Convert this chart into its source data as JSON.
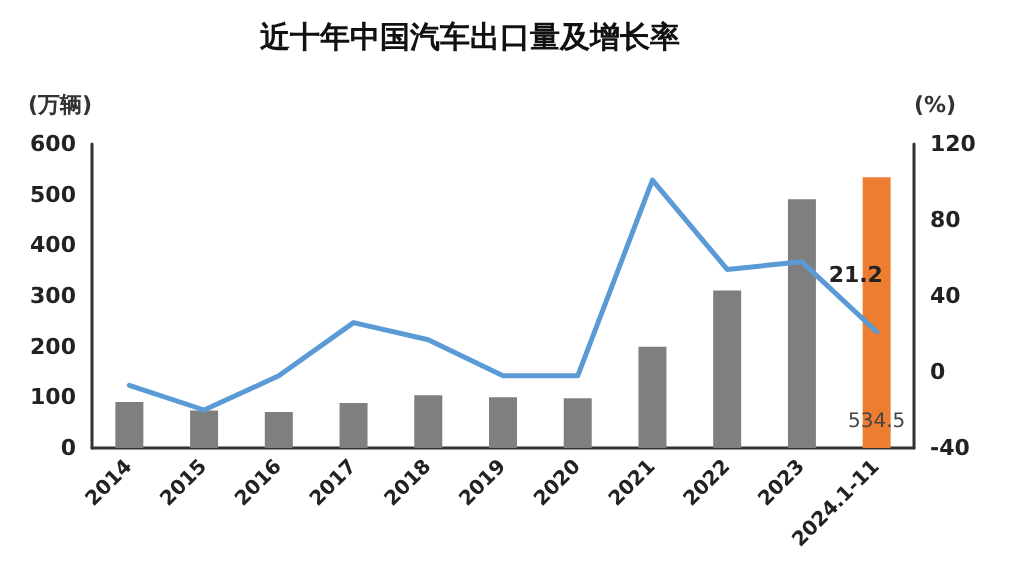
{
  "chart_data": {
    "type": "bar",
    "title": "近十年中国汽车出口量及增长率",
    "ylabel": "(万辆)",
    "y2label": "(%)",
    "categories": [
      "2014",
      "2015",
      "2016",
      "2017",
      "2018",
      "2019",
      "2020",
      "2021",
      "2022",
      "2023",
      "2024.1-11"
    ],
    "series": [
      {
        "colors": [
          "#7f7f7f",
          "#7f7f7f",
          "#7f7f7f",
          "#7f7f7f",
          "#7f7f7f",
          "#7f7f7f",
          "#7f7f7f",
          "#7f7f7f",
          "#7f7f7f",
          "#7f7f7f",
          "#ed7d31"
        ],
        "values": [
          91,
          74,
          71,
          89,
          104,
          100,
          98,
          200,
          311,
          491,
          534.5
        ],
        "value_labels": [
          null,
          null,
          null,
          null,
          null,
          null,
          null,
          null,
          null,
          null,
          "534.5"
        ]
      },
      {
        "type": "line",
        "axis": "y2",
        "color": "#5b9bd5",
        "values": [
          -7,
          -20,
          -2,
          26,
          17,
          -2,
          -2,
          101,
          54,
          58,
          21.2
        ],
        "value_labels": [
          null,
          null,
          null,
          null,
          null,
          null,
          null,
          null,
          null,
          null,
          "21.2"
        ]
      }
    ],
    "ylim": [
      0,
      600
    ],
    "yticks": [
      0,
      100,
      200,
      300,
      400,
      500,
      600
    ],
    "y2lim": [
      -40,
      120
    ],
    "y2ticks": [
      -40,
      0,
      40,
      80,
      120
    ],
    "grid": false,
    "marker": "none"
  }
}
